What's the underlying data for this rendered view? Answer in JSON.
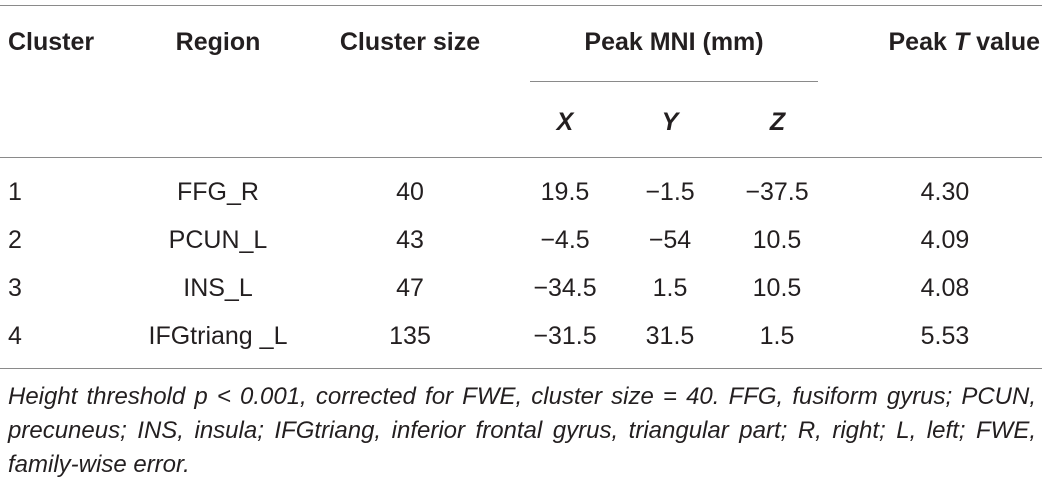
{
  "table": {
    "headers": {
      "cluster": "Cluster",
      "region": "Region",
      "cluster_size": "Cluster size",
      "peak_mni": "Peak MNI (mm)",
      "peak_t_prefix": "Peak ",
      "peak_t_italic": "T",
      "peak_t_suffix": " value",
      "x": "X",
      "y": "Y",
      "z": "Z"
    },
    "rows": [
      {
        "cluster": "1",
        "region": "FFG_R",
        "size": "40",
        "x": "19.5",
        "y": "−1.5",
        "z": "−37.5",
        "t": "4.30"
      },
      {
        "cluster": "2",
        "region": "PCUN_L",
        "size": "43",
        "x": "−4.5",
        "y": "−54",
        "z": "10.5",
        "t": "4.09"
      },
      {
        "cluster": "3",
        "region": "INS_L",
        "size": "47",
        "x": "−34.5",
        "y": "1.5",
        "z": "10.5",
        "t": "4.08"
      },
      {
        "cluster": "4",
        "region": "IFGtriang _L",
        "size": "135",
        "x": "−31.5",
        "y": "31.5",
        "z": "1.5",
        "t": "5.53"
      }
    ],
    "footnote": "Height threshold p < 0.001, corrected for FWE, cluster size = 40. FFG, fusiform gyrus; PCUN, precuneus; INS, insula; IFGtriang, inferior frontal gyrus, triangular part; R, right; L, left; FWE, family-wise error."
  }
}
